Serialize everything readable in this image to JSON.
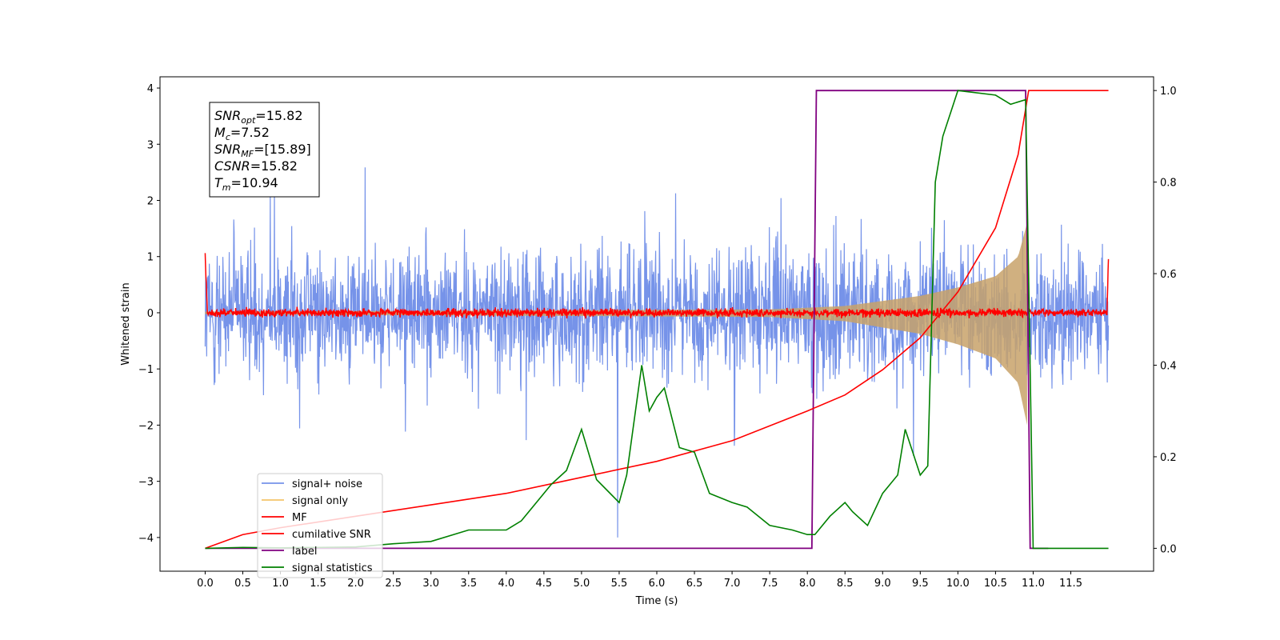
{
  "chart_data": {
    "type": "line",
    "xlabel": "Time (s)",
    "ylabel": "Whitened strain",
    "xlim": [
      -0.6,
      12.6
    ],
    "ylim": [
      -4.6,
      4.2
    ],
    "y2lim": [
      -0.05,
      1.03
    ],
    "x_ticks": [
      "0.0",
      "0.5",
      "1.0",
      "1.5",
      "2.0",
      "2.5",
      "3.0",
      "3.5",
      "4.0",
      "4.5",
      "5.0",
      "5.5",
      "6.0",
      "6.5",
      "7.0",
      "7.5",
      "8.0",
      "8.5",
      "9.0",
      "9.5",
      "10.0",
      "10.5",
      "11.0",
      "11.5"
    ],
    "y_ticks": [
      "4",
      "3",
      "2",
      "1",
      "0",
      "−1",
      "−2",
      "−3",
      "−4"
    ],
    "y2_ticks": [
      "1.0",
      "0.8",
      "0.6",
      "0.4",
      "0.2",
      "0.0"
    ],
    "legend_position": "lower-left",
    "annotation": {
      "lines": [
        {
          "sym": "SNR",
          "sub": "opt",
          "value": "=15.82"
        },
        {
          "sym": "M",
          "sub": "c",
          "value": "=7.52"
        },
        {
          "sym": "SNR",
          "sub": "MF",
          "value": "=[15.89]"
        },
        {
          "sym": "CSNR",
          "sub": "",
          "value": "=15.82"
        },
        {
          "sym": "T",
          "sub": "m",
          "value": "=10.94"
        }
      ]
    },
    "series": [
      {
        "name": "signal+ noise",
        "color": "#4169E1",
        "axis": "left",
        "noise_sigma": 1.05,
        "x_range": [
          0.0,
          12.0
        ]
      },
      {
        "name": "signal only",
        "color": "#F5C56A",
        "axis": "left",
        "chirp_envelope": [
          [
            0.0,
            0.02
          ],
          [
            7.5,
            0.06
          ],
          [
            8.5,
            0.12
          ],
          [
            9.5,
            0.3
          ],
          [
            10.0,
            0.45
          ],
          [
            10.5,
            0.65
          ],
          [
            10.8,
            1.0
          ],
          [
            10.92,
            1.6
          ],
          [
            10.94,
            0.0
          ]
        ]
      },
      {
        "name": "MF",
        "color": "#FF0000",
        "axis": "left",
        "noise_sigma": 0.05,
        "x_range": [
          0.0,
          12.0
        ],
        "end_values": [
          1.0,
          0.95
        ]
      },
      {
        "name": "cumilative SNR",
        "color": "#FF0000",
        "axis": "right",
        "points": [
          [
            0.0,
            0.0
          ],
          [
            0.5,
            0.03
          ],
          [
            1.0,
            0.045
          ],
          [
            2.0,
            0.07
          ],
          [
            3.0,
            0.095
          ],
          [
            4.0,
            0.12
          ],
          [
            5.0,
            0.155
          ],
          [
            6.0,
            0.19
          ],
          [
            7.0,
            0.235
          ],
          [
            8.0,
            0.3
          ],
          [
            8.5,
            0.335
          ],
          [
            9.0,
            0.39
          ],
          [
            9.5,
            0.46
          ],
          [
            10.0,
            0.56
          ],
          [
            10.5,
            0.7
          ],
          [
            10.8,
            0.86
          ],
          [
            10.94,
            1.0
          ],
          [
            12.0,
            1.0
          ]
        ]
      },
      {
        "name": "label",
        "color": "#800080",
        "axis": "right",
        "points": [
          [
            0.0,
            0.0
          ],
          [
            8.06,
            0.0
          ],
          [
            8.12,
            1.0
          ],
          [
            10.9,
            1.0
          ],
          [
            10.96,
            0.0
          ],
          [
            11.2,
            0.0
          ]
        ]
      },
      {
        "name": "signal statistics",
        "color": "#008000",
        "axis": "right",
        "points": [
          [
            0.0,
            0.0
          ],
          [
            0.5,
            0.002
          ],
          [
            1.0,
            0.001
          ],
          [
            1.5,
            0.002
          ],
          [
            2.0,
            0.003
          ],
          [
            2.5,
            0.01
          ],
          [
            3.0,
            0.015
          ],
          [
            3.5,
            0.04
          ],
          [
            4.0,
            0.04
          ],
          [
            4.2,
            0.06
          ],
          [
            4.5,
            0.12
          ],
          [
            4.6,
            0.14
          ],
          [
            4.8,
            0.17
          ],
          [
            5.0,
            0.26
          ],
          [
            5.2,
            0.15
          ],
          [
            5.5,
            0.1
          ],
          [
            5.6,
            0.16
          ],
          [
            5.8,
            0.4
          ],
          [
            5.9,
            0.3
          ],
          [
            6.0,
            0.33
          ],
          [
            6.1,
            0.35
          ],
          [
            6.3,
            0.22
          ],
          [
            6.5,
            0.21
          ],
          [
            6.7,
            0.12
          ],
          [
            7.0,
            0.1
          ],
          [
            7.2,
            0.09
          ],
          [
            7.5,
            0.05
          ],
          [
            7.8,
            0.04
          ],
          [
            8.0,
            0.03
          ],
          [
            8.1,
            0.03
          ],
          [
            8.3,
            0.07
          ],
          [
            8.5,
            0.1
          ],
          [
            8.6,
            0.08
          ],
          [
            8.8,
            0.05
          ],
          [
            9.0,
            0.12
          ],
          [
            9.2,
            0.16
          ],
          [
            9.3,
            0.26
          ],
          [
            9.5,
            0.16
          ],
          [
            9.6,
            0.18
          ],
          [
            9.7,
            0.8
          ],
          [
            9.8,
            0.9
          ],
          [
            10.0,
            1.0
          ],
          [
            10.5,
            0.99
          ],
          [
            10.7,
            0.97
          ],
          [
            10.9,
            0.98
          ],
          [
            11.0,
            0.0
          ],
          [
            12.0,
            0.0
          ]
        ]
      }
    ]
  }
}
